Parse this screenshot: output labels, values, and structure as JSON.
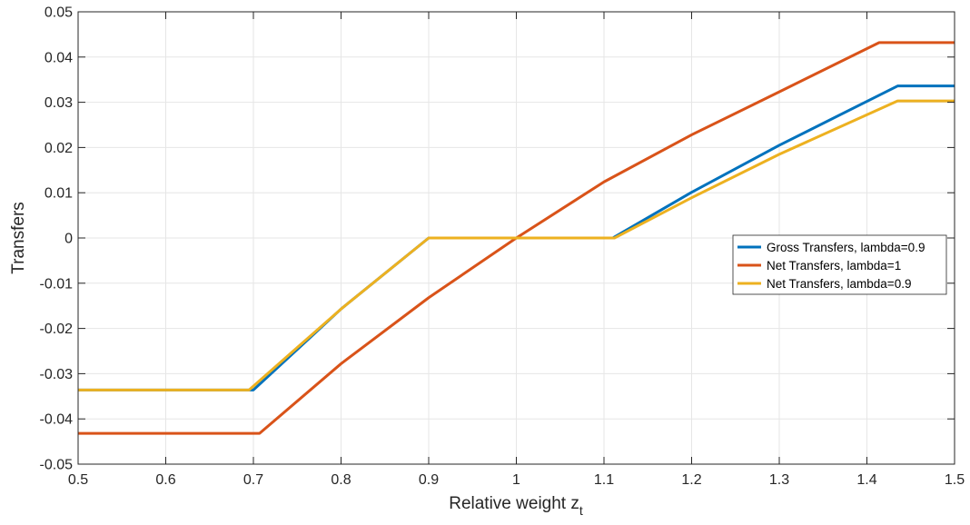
{
  "chart_data": {
    "type": "line",
    "xlabel": "Relative weight z",
    "xlabel_subscript": "t",
    "ylabel": "Transfers",
    "xlim": [
      0.5,
      1.5
    ],
    "ylim": [
      -0.05,
      0.05
    ],
    "xticks": [
      0.5,
      0.6,
      0.7,
      0.8,
      0.9,
      1,
      1.1,
      1.2,
      1.3,
      1.4,
      1.5
    ],
    "xtick_labels": [
      "0.5",
      "0.6",
      "0.7",
      "0.8",
      "0.9",
      "1",
      "1.1",
      "1.2",
      "1.3",
      "1.4",
      "1.5"
    ],
    "yticks": [
      -0.05,
      -0.04,
      -0.03,
      -0.02,
      -0.01,
      0,
      0.01,
      0.02,
      0.03,
      0.04,
      0.05
    ],
    "ytick_labels": [
      "-0.05",
      "-0.04",
      "-0.03",
      "-0.02",
      "-0.01",
      "0",
      "0.01",
      "0.02",
      "0.03",
      "0.04",
      "0.05"
    ],
    "grid": true,
    "legend_position": "right-middle",
    "series": [
      {
        "name": "Gross Transfers, lambda=0.9",
        "color": "#0072BD",
        "x": [
          0.5,
          0.7,
          0.8,
          0.9,
          1.0,
          1.11,
          1.2,
          1.3,
          1.435,
          1.5
        ],
        "y": [
          -0.0336,
          -0.0336,
          -0.0157,
          0,
          0,
          0,
          0.0101,
          0.0205,
          0.0336,
          0.0336
        ]
      },
      {
        "name": "Net Transfers, lambda=1",
        "color": "#D95319",
        "x": [
          0.5,
          0.707,
          0.8,
          0.9,
          1.0,
          1.1,
          1.2,
          1.3,
          1.414,
          1.5
        ],
        "y": [
          -0.0432,
          -0.0432,
          -0.0278,
          -0.0132,
          0,
          0.0124,
          0.0228,
          0.0323,
          0.0432,
          0.0432
        ]
      },
      {
        "name": "Net Transfers, lambda=0.9",
        "color": "#EDB120",
        "x": [
          0.5,
          0.695,
          0.8,
          0.9,
          1.0,
          1.112,
          1.2,
          1.3,
          1.435,
          1.5
        ],
        "y": [
          -0.0336,
          -0.0336,
          -0.0157,
          0,
          0,
          0,
          0.0089,
          0.0185,
          0.0303,
          0.0303
        ]
      }
    ]
  }
}
